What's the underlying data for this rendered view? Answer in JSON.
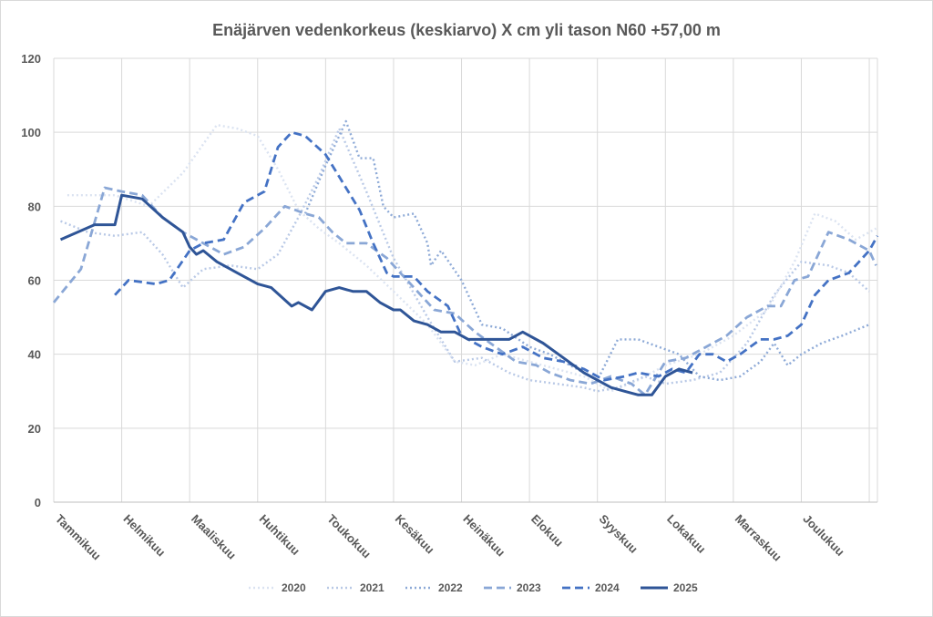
{
  "chart_data": {
    "type": "line",
    "title": "Enäjärven vedenkorkeus (keskiarvo) X cm yli tason N60 +57,00 m",
    "xlabel": "",
    "ylabel": "",
    "ylim": [
      0,
      120
    ],
    "yticks": [
      0,
      20,
      40,
      60,
      80,
      100,
      120
    ],
    "grid": true,
    "legend_position": "bottom",
    "x_unit": "month index (0 = start of Tammikuu, 12 = end of Joulukuu)",
    "xlim": [
      0,
      12.12
    ],
    "months": [
      "Tammikuu",
      "Helmikuu",
      "Maaliskuu",
      "Huhtikuu",
      "Toukokuu",
      "Kesäkuu",
      "Heinäkuu",
      "Elokuu",
      "Syyskuu",
      "Lokakuu",
      "Marraskuu",
      "Joulukuu"
    ],
    "series": [
      {
        "name": "2020",
        "color": "#dbe3f1",
        "style": "dotted",
        "x": [
          0.2,
          0.9,
          1.4,
          1.9,
          2.4,
          2.7,
          3.0,
          3.3,
          3.6,
          3.9,
          4.2,
          4.6,
          5.0,
          5.5,
          5.9,
          6.2,
          6.6,
          7.0,
          7.4,
          7.8,
          8.2,
          8.6,
          9.0,
          9.5,
          10.0,
          10.5,
          10.9,
          11.2,
          11.5,
          11.8,
          12.1
        ],
        "y": [
          83,
          83,
          80,
          89,
          102,
          101,
          99,
          90,
          79,
          74,
          70,
          64,
          57,
          48,
          38,
          37,
          40,
          38,
          36,
          34,
          30,
          33,
          37,
          40,
          45,
          52,
          65,
          78,
          76,
          71,
          74
        ]
      },
      {
        "name": "2021",
        "color": "#b9c9e6",
        "style": "dotted",
        "x": [
          0.1,
          0.5,
          0.9,
          1.3,
          1.6,
          1.9,
          2.2,
          2.6,
          3.0,
          3.3,
          3.6,
          3.9,
          4.2,
          4.6,
          5.0,
          5.5,
          5.9,
          6.3,
          6.7,
          7.0,
          7.4,
          7.8,
          8.0,
          8.3,
          8.7,
          9.0,
          9.4,
          9.8,
          10.2,
          10.6,
          11.0,
          11.4,
          11.7,
          12.0
        ],
        "y": [
          76,
          73,
          72,
          73,
          67,
          58,
          63,
          64,
          63,
          67,
          77,
          88,
          101,
          84,
          66,
          50,
          38,
          39,
          35,
          33,
          32,
          31,
          30,
          31,
          34,
          32,
          33,
          35,
          43,
          56,
          65,
          64,
          62,
          57
        ]
      },
      {
        "name": "2022",
        "color": "#8eaad7",
        "style": "dotted",
        "x": [
          3.7,
          4.0,
          4.3,
          4.5,
          4.7,
          4.85,
          5.0,
          5.3,
          5.5,
          5.55,
          5.7,
          6.0,
          6.3,
          6.6,
          7.0,
          7.3,
          7.7,
          8.0,
          8.3,
          8.6,
          8.9,
          9.2,
          9.5,
          9.8,
          10.1,
          10.4,
          10.6,
          10.8,
          11.0,
          11.3,
          11.6,
          12.0
        ],
        "y": [
          78,
          91,
          103,
          93,
          93,
          80,
          77,
          78,
          70,
          64,
          68,
          60,
          48,
          47,
          42,
          40,
          36,
          33,
          44,
          44,
          42,
          40,
          34,
          33,
          34,
          38,
          43,
          37,
          40,
          43,
          45,
          48
        ]
      },
      {
        "name": "2023",
        "color": "#8aa7d6",
        "style": "dashed",
        "x": [
          0.0,
          0.4,
          0.75,
          1.0,
          1.3,
          1.6,
          1.9,
          2.2,
          2.5,
          2.8,
          3.1,
          3.4,
          3.7,
          3.9,
          4.1,
          4.3,
          4.6,
          4.9,
          5.1,
          5.3,
          5.6,
          5.9,
          6.2,
          6.5,
          6.8,
          7.1,
          7.3,
          7.6,
          7.9,
          8.2,
          8.5,
          8.7,
          9.0,
          9.3,
          9.6,
          9.9,
          10.2,
          10.5,
          10.7,
          10.9,
          11.1,
          11.4,
          11.7,
          12.0,
          12.1
        ],
        "y": [
          54,
          63,
          85,
          84,
          83,
          77,
          73,
          70,
          67,
          69,
          74,
          80,
          78,
          77,
          73,
          70,
          70,
          66,
          62,
          58,
          52,
          51,
          46,
          42,
          38,
          37,
          35,
          33,
          32,
          34,
          32,
          29,
          38,
          39,
          42,
          45,
          50,
          53,
          53,
          60,
          61,
          73,
          71,
          68,
          64
        ]
      },
      {
        "name": "2024",
        "color": "#4472c4",
        "style": "dashed",
        "x": [
          0.9,
          1.1,
          1.5,
          1.7,
          2.0,
          2.2,
          2.5,
          2.8,
          3.1,
          3.3,
          3.5,
          3.7,
          4.0,
          4.2,
          4.5,
          4.7,
          4.9,
          5.0,
          5.3,
          5.5,
          5.8,
          6.0,
          6.3,
          6.6,
          6.9,
          7.2,
          7.5,
          7.8,
          8.1,
          8.4,
          8.6,
          8.9,
          9.1,
          9.3,
          9.5,
          9.7,
          9.9,
          10.1,
          10.4,
          10.6,
          10.8,
          11.0,
          11.2,
          11.4,
          11.7,
          12.0,
          12.12
        ],
        "y": [
          56,
          60,
          59,
          60,
          68,
          70,
          71,
          81,
          84,
          96,
          100,
          99,
          94,
          88,
          79,
          70,
          62,
          61,
          61,
          57,
          53,
          45,
          42,
          40,
          42,
          39,
          38,
          36,
          33,
          34,
          35,
          34,
          36,
          35,
          40,
          40,
          38,
          40,
          44,
          44,
          45,
          48,
          56,
          60,
          62,
          68,
          72
        ]
      },
      {
        "name": "2025",
        "color": "#2f5597",
        "style": "solid",
        "x": [
          0.1,
          0.6,
          0.9,
          1.0,
          1.3,
          1.6,
          1.9,
          2.0,
          2.1,
          2.2,
          2.4,
          2.7,
          3.0,
          3.2,
          3.5,
          3.6,
          3.8,
          4.0,
          4.2,
          4.4,
          4.6,
          4.8,
          5.0,
          5.1,
          5.3,
          5.5,
          5.7,
          5.9,
          6.1,
          6.3,
          6.5,
          6.7,
          6.9,
          7.2,
          7.5,
          7.8,
          8.0,
          8.2,
          8.4,
          8.6,
          8.8,
          9.0,
          9.2,
          9.4
        ],
        "y": [
          71,
          75,
          75,
          83,
          82,
          77,
          73,
          69,
          67,
          68,
          65,
          62,
          59,
          58,
          53,
          54,
          52,
          57,
          58,
          57,
          57,
          54,
          52,
          52,
          49,
          48,
          46,
          46,
          44,
          44,
          44,
          44,
          46,
          43,
          39,
          35,
          33,
          31,
          30,
          29,
          29,
          34,
          36,
          35
        ]
      }
    ]
  }
}
